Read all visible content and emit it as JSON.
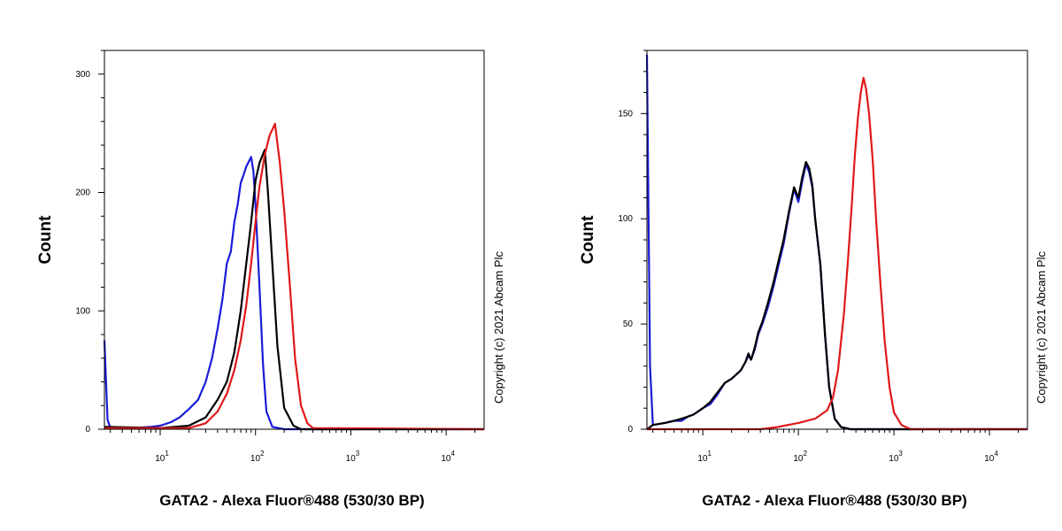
{
  "chart_data": [
    {
      "type": "line",
      "title": "",
      "xlabel": "GATA2 - Alexa Fluor®488 (530/30 BP)",
      "ylabel": "Count",
      "x_scale": "log",
      "xlim": [
        2.6,
        25000
      ],
      "ylim": [
        0,
        320
      ],
      "y_ticks": [
        0,
        100,
        200,
        300
      ],
      "x_tick_labels": [
        {
          "value": 10,
          "base": "10",
          "exp": "1"
        },
        {
          "value": 100,
          "base": "10",
          "exp": "2"
        },
        {
          "value": 1000,
          "base": "10",
          "exp": "3"
        },
        {
          "value": 10000,
          "base": "10",
          "exp": "4"
        }
      ],
      "grid": false,
      "annotation": "Copyright (c) 2021 Abcam Plc",
      "series": [
        {
          "color": "#1a1ad8",
          "points": [
            [
              2.6,
              75
            ],
            [
              2.8,
              8
            ],
            [
              3,
              1
            ],
            [
              5,
              1
            ],
            [
              8,
              2
            ],
            [
              10,
              3
            ],
            [
              13,
              6
            ],
            [
              16,
              10
            ],
            [
              20,
              17
            ],
            [
              25,
              25
            ],
            [
              30,
              40
            ],
            [
              35,
              60
            ],
            [
              40,
              85
            ],
            [
              45,
              110
            ],
            [
              50,
              140
            ],
            [
              55,
              150
            ],
            [
              60,
              175
            ],
            [
              65,
              190
            ],
            [
              70,
              208
            ],
            [
              75,
              215
            ],
            [
              80,
              222
            ],
            [
              90,
              230
            ],
            [
              95,
              218
            ],
            [
              100,
              190
            ],
            [
              110,
              120
            ],
            [
              120,
              55
            ],
            [
              130,
              15
            ],
            [
              150,
              2
            ],
            [
              200,
              0
            ],
            [
              25000,
              0
            ]
          ]
        },
        {
          "color": "#000000",
          "points": [
            [
              2.6,
              2
            ],
            [
              10,
              1
            ],
            [
              20,
              3
            ],
            [
              30,
              10
            ],
            [
              40,
              25
            ],
            [
              50,
              40
            ],
            [
              60,
              65
            ],
            [
              70,
              100
            ],
            [
              80,
              140
            ],
            [
              90,
              175
            ],
            [
              100,
              210
            ],
            [
              110,
              225
            ],
            [
              125,
              236
            ],
            [
              135,
              200
            ],
            [
              150,
              140
            ],
            [
              170,
              70
            ],
            [
              200,
              18
            ],
            [
              250,
              3
            ],
            [
              300,
              0
            ],
            [
              25000,
              0
            ]
          ]
        },
        {
          "color": "#e01818",
          "points": [
            [
              2.6,
              1
            ],
            [
              20,
              1
            ],
            [
              30,
              5
            ],
            [
              40,
              15
            ],
            [
              50,
              30
            ],
            [
              60,
              50
            ],
            [
              70,
              75
            ],
            [
              80,
              105
            ],
            [
              90,
              140
            ],
            [
              100,
              175
            ],
            [
              110,
              205
            ],
            [
              125,
              232
            ],
            [
              140,
              248
            ],
            [
              160,
              258
            ],
            [
              180,
              225
            ],
            [
              200,
              185
            ],
            [
              230,
              120
            ],
            [
              260,
              60
            ],
            [
              300,
              20
            ],
            [
              350,
              5
            ],
            [
              400,
              1
            ],
            [
              25000,
              0
            ]
          ]
        }
      ]
    },
    {
      "type": "line",
      "title": "",
      "xlabel": "GATA2 - Alexa Fluor®488 (530/30 BP)",
      "ylabel": "Count",
      "x_scale": "log",
      "xlim": [
        2.6,
        25000
      ],
      "ylim": [
        0,
        180
      ],
      "y_ticks": [
        0,
        50,
        100,
        150
      ],
      "x_tick_labels": [
        {
          "value": 10,
          "base": "10",
          "exp": "1"
        },
        {
          "value": 100,
          "base": "10",
          "exp": "2"
        },
        {
          "value": 1000,
          "base": "10",
          "exp": "3"
        },
        {
          "value": 10000,
          "base": "10",
          "exp": "4"
        }
      ],
      "grid": false,
      "annotation": "Copyright (c) 2021 Abcam Plc",
      "series": [
        {
          "color": "#1a1ad8",
          "points": [
            [
              2.6,
              178
            ],
            [
              2.8,
              30
            ],
            [
              3,
              2
            ],
            [
              4,
              3
            ],
            [
              5,
              4
            ],
            [
              6,
              4
            ],
            [
              7,
              6
            ],
            [
              8,
              7
            ],
            [
              10,
              10
            ],
            [
              12,
              12
            ],
            [
              14,
              16
            ],
            [
              17,
              22
            ],
            [
              20,
              24
            ],
            [
              25,
              28
            ],
            [
              28,
              32
            ],
            [
              30,
              35
            ],
            [
              32,
              33
            ],
            [
              35,
              38
            ],
            [
              38,
              45
            ],
            [
              42,
              50
            ],
            [
              48,
              58
            ],
            [
              55,
              68
            ],
            [
              62,
              78
            ],
            [
              70,
              88
            ],
            [
              80,
              103
            ],
            [
              90,
              114
            ],
            [
              100,
              108
            ],
            [
              110,
              118
            ],
            [
              120,
              126
            ],
            [
              130,
              122
            ],
            [
              140,
              115
            ],
            [
              150,
              100
            ],
            [
              170,
              78
            ],
            [
              190,
              45
            ],
            [
              210,
              20
            ],
            [
              240,
              5
            ],
            [
              280,
              1
            ],
            [
              350,
              0
            ],
            [
              25000,
              0
            ]
          ]
        },
        {
          "color": "#000000",
          "points": [
            [
              2.6,
              0
            ],
            [
              3,
              2
            ],
            [
              4,
              3
            ],
            [
              5,
              4
            ],
            [
              6,
              5
            ],
            [
              7,
              6
            ],
            [
              8,
              7
            ],
            [
              10,
              10
            ],
            [
              12,
              13
            ],
            [
              14,
              17
            ],
            [
              17,
              22
            ],
            [
              20,
              24
            ],
            [
              25,
              28
            ],
            [
              28,
              32
            ],
            [
              30,
              36
            ],
            [
              32,
              33
            ],
            [
              35,
              39
            ],
            [
              38,
              46
            ],
            [
              42,
              51
            ],
            [
              48,
              60
            ],
            [
              55,
              70
            ],
            [
              62,
              80
            ],
            [
              70,
              90
            ],
            [
              80,
              104
            ],
            [
              90,
              115
            ],
            [
              100,
              110
            ],
            [
              110,
              120
            ],
            [
              120,
              127
            ],
            [
              130,
              124
            ],
            [
              140,
              116
            ],
            [
              150,
              100
            ],
            [
              170,
              78
            ],
            [
              190,
              45
            ],
            [
              210,
              20
            ],
            [
              240,
              5
            ],
            [
              280,
              1
            ],
            [
              350,
              0
            ],
            [
              25000,
              0
            ]
          ]
        },
        {
          "color": "#e01818",
          "points": [
            [
              2.6,
              0
            ],
            [
              40,
              0
            ],
            [
              60,
              1
            ],
            [
              100,
              3
            ],
            [
              150,
              5
            ],
            [
              200,
              9
            ],
            [
              230,
              15
            ],
            [
              260,
              28
            ],
            [
              300,
              55
            ],
            [
              330,
              80
            ],
            [
              360,
              105
            ],
            [
              390,
              130
            ],
            [
              420,
              148
            ],
            [
              450,
              160
            ],
            [
              480,
              167
            ],
            [
              510,
              162
            ],
            [
              550,
              150
            ],
            [
              600,
              128
            ],
            [
              650,
              100
            ],
            [
              720,
              70
            ],
            [
              800,
              42
            ],
            [
              900,
              20
            ],
            [
              1000,
              8
            ],
            [
              1200,
              2
            ],
            [
              1500,
              0
            ],
            [
              25000,
              0
            ]
          ]
        }
      ]
    }
  ]
}
